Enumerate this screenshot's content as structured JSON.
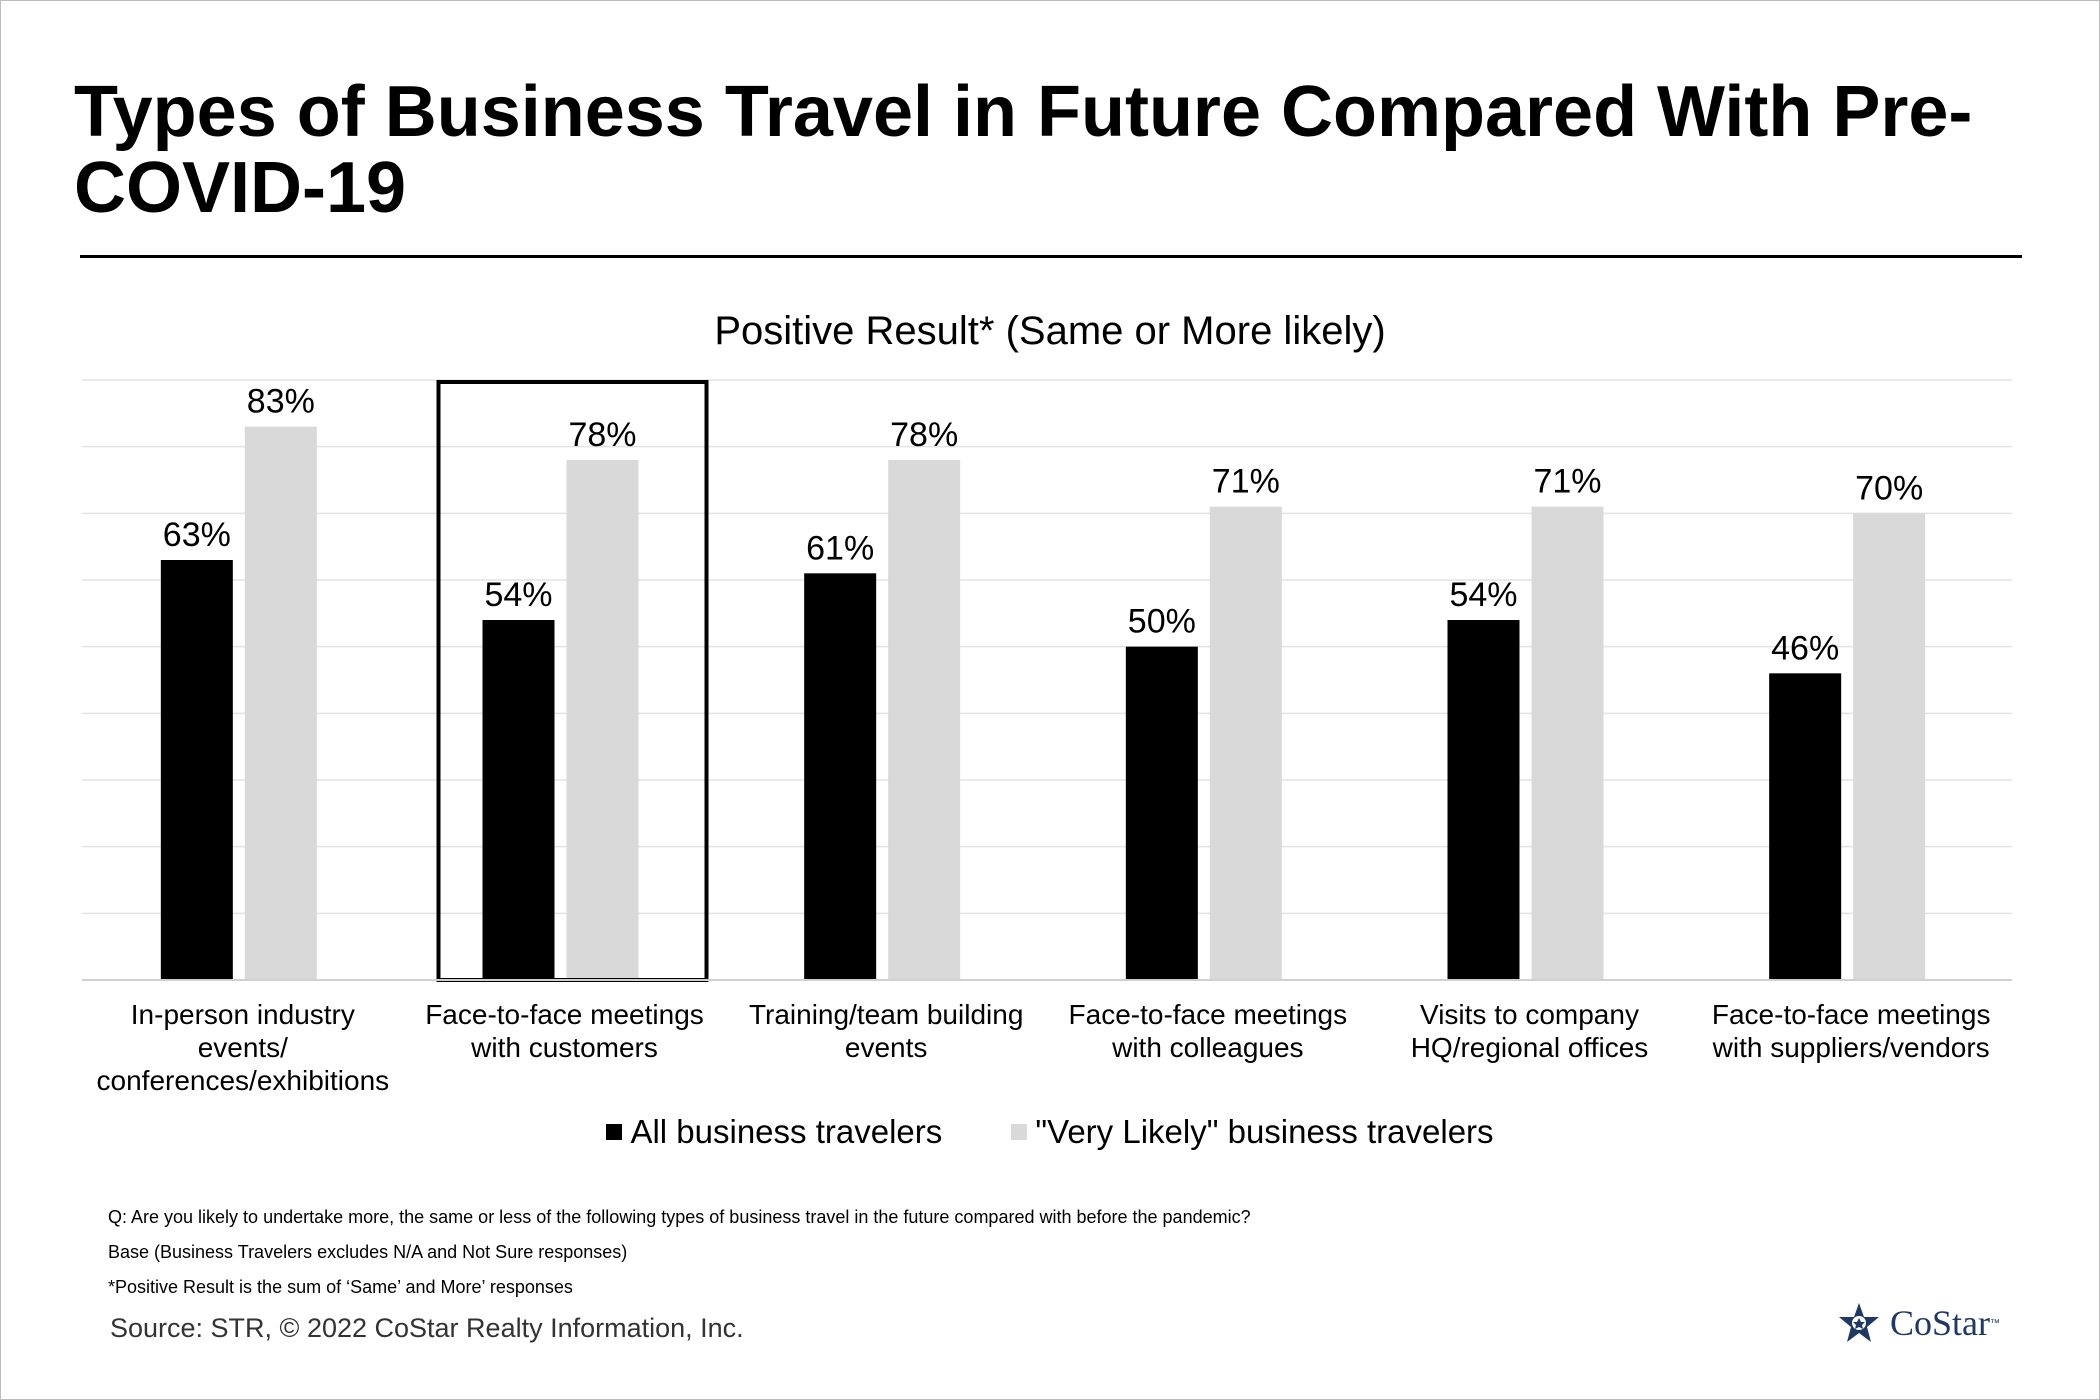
{
  "title": "Types of Business Travel in Future Compared With Pre-COVID-19",
  "subtitle": "Positive Result* (Same or More likely)",
  "chart_data": {
    "type": "bar",
    "title": "Positive Result* (Same or More likely)",
    "categories": [
      [
        "In-person industry",
        "events/",
        "conferences/exhibitions"
      ],
      [
        "Face-to-face meetings",
        "with customers"
      ],
      [
        "Training/team building",
        "events"
      ],
      [
        "Face-to-face meetings",
        "with colleagues"
      ],
      [
        "Visits to company",
        "HQ/regional offices"
      ],
      [
        "Face-to-face meetings",
        "with suppliers/vendors"
      ]
    ],
    "series": [
      {
        "name": "All business travelers",
        "values": [
          63,
          54,
          61,
          50,
          54,
          46
        ],
        "color": "#000000"
      },
      {
        "name": "\"Very Likely\" business travelers",
        "values": [
          83,
          78,
          78,
          71,
          71,
          70
        ],
        "color": "#d9d9d9"
      }
    ],
    "value_suffix": "%",
    "ylim": [
      0,
      90
    ],
    "grid": true,
    "legend_position": "bottom",
    "highlighted_category_index": 1
  },
  "legend": {
    "items": [
      {
        "label": "All business travelers",
        "color": "#000000"
      },
      {
        "label": "\"Very Likely\" business travelers",
        "color": "#d9d9d9"
      }
    ]
  },
  "notes": [
    "Q: Are you likely to undertake more, the same or less of the following types of business travel in the future compared with before the pandemic?",
    "Base (Business Travelers excludes N/A and Not Sure responses)",
    "*Positive Result is the sum of ‘Same’ and More’ responses"
  ],
  "source": "Source: STR, © 2022  CoStar Realty Information, Inc.",
  "logo": {
    "text": "CoStar",
    "tm": "™",
    "color": "#1f3864"
  }
}
